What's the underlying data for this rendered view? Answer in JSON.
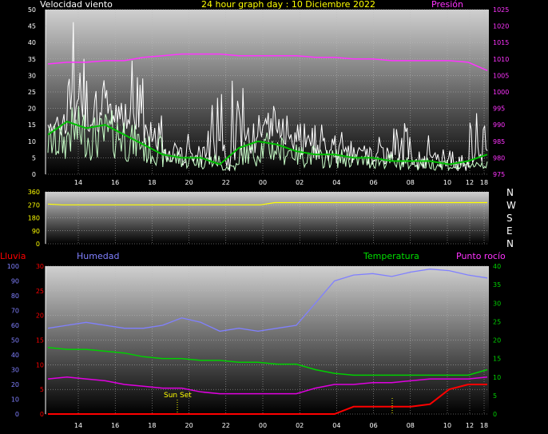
{
  "top": {
    "title": "24 hour graph day : 10 Diciembre 2022",
    "left_label": "Velocidad viento",
    "right_label": "Presión"
  },
  "dir": {
    "letters": [
      "N",
      "W",
      "S",
      "E",
      "N"
    ]
  },
  "bottom": {
    "labels": {
      "rain": "Lluvia",
      "humidity": "Humedad",
      "temperature": "Temperatura",
      "dewpoint": "Punto rocío"
    },
    "annotations": {
      "sunset": "Sun Set"
    }
  },
  "colors": {
    "title": "#ffff00",
    "pressure": "#ff33ff",
    "wind_gust": "#ffffff",
    "wind_speed": "#c8ffc8",
    "wind_avg": "#00c000",
    "direction": "#ffff00",
    "rain": "#ff0000",
    "humidity": "#8080ff",
    "temperature": "#00d000",
    "dewpoint": "#e000e0",
    "grid": "#bbbbbb"
  },
  "chart_data": [
    {
      "type": "line",
      "name": "wind_pressure",
      "x_ticks": [
        "14",
        "16",
        "18",
        "20",
        "22",
        "00",
        "02",
        "04",
        "06",
        "08",
        "10",
        "12",
        "18"
      ],
      "y_left_ticks": [
        0,
        5,
        10,
        15,
        20,
        25,
        30,
        35,
        40,
        45,
        50
      ],
      "y_left_range": [
        0,
        50
      ],
      "y_right_ticks": [
        975,
        980,
        985,
        990,
        995,
        1000,
        1005,
        1010,
        1015,
        1020,
        1025
      ],
      "y_right_range": [
        975,
        1025
      ],
      "pressure": [
        1008.5,
        1009,
        1009,
        1009.5,
        1009.5,
        1010.5,
        1011,
        1011.5,
        1011.5,
        1011.5,
        1011,
        1011,
        1011,
        1011,
        1010.5,
        1010.5,
        1010,
        1010,
        1009.5,
        1009.5,
        1009.5,
        1009.5,
        1009,
        1006.5
      ],
      "wind_avg": [
        12,
        16,
        14,
        15,
        12,
        9,
        6,
        5,
        5,
        3,
        8,
        10,
        9,
        7,
        6,
        6,
        5,
        5,
        4,
        4,
        4,
        3,
        4,
        6
      ],
      "wind_gust_peaks": [
        28,
        46,
        37,
        30,
        35,
        20,
        12,
        10,
        22,
        30,
        25,
        24,
        22,
        17,
        14,
        12,
        10,
        10,
        18,
        10,
        8,
        7,
        17,
        10
      ]
    },
    {
      "type": "line",
      "name": "wind_direction",
      "y_ticks": [
        0,
        90,
        180,
        270,
        360
      ],
      "y_range": [
        0,
        360
      ],
      "values": [
        275,
        270,
        270,
        270,
        270,
        270,
        270,
        270,
        270,
        270,
        270,
        270,
        270,
        270,
        270,
        270,
        285,
        285,
        285,
        285,
        285,
        285,
        285,
        285,
        285,
        285,
        285,
        285,
        285,
        285,
        285,
        285
      ]
    },
    {
      "type": "line",
      "name": "rain_humidity_temp",
      "x_ticks": [
        "14",
        "16",
        "18",
        "20",
        "22",
        "00",
        "02",
        "04",
        "06",
        "08",
        "10",
        "12",
        "18"
      ],
      "y_humidity_ticks": [
        0,
        10,
        20,
        30,
        40,
        50,
        60,
        70,
        80,
        90,
        100
      ],
      "y_humidity_range": [
        0,
        100
      ],
      "y_rain_ticks": [
        0,
        5,
        10,
        15,
        20,
        25,
        30
      ],
      "y_rain_range": [
        0,
        30
      ],
      "y_temp_ticks": [
        0,
        5,
        10,
        15,
        20,
        25,
        30,
        35,
        40
      ],
      "y_temp_range": [
        0,
        40
      ],
      "humidity": [
        58,
        60,
        62,
        60,
        58,
        58,
        60,
        65,
        62,
        56,
        58,
        56,
        58,
        60,
        75,
        90,
        94,
        95,
        93,
        96,
        98,
        97,
        94,
        92
      ],
      "temperature": [
        18,
        17.5,
        17.5,
        17,
        16.5,
        15.5,
        15,
        15,
        14.5,
        14.5,
        14,
        14,
        13.5,
        13.5,
        12,
        11,
        10.5,
        10.5,
        10.5,
        10.5,
        10.5,
        10.5,
        10.5,
        12
      ],
      "dewpoint": [
        9.5,
        10,
        9.5,
        9,
        8,
        7.5,
        7,
        7,
        6,
        5.5,
        5.5,
        5.5,
        5.5,
        5.5,
        7,
        8,
        8,
        8.5,
        8.5,
        9,
        9.5,
        9.5,
        9.5,
        10
      ],
      "rain": [
        0,
        0,
        0,
        0,
        0,
        0,
        0,
        0,
        0,
        0,
        0,
        0,
        0,
        0,
        0,
        0,
        1.5,
        1.5,
        1.5,
        1.5,
        2,
        5,
        6,
        6
      ]
    }
  ]
}
